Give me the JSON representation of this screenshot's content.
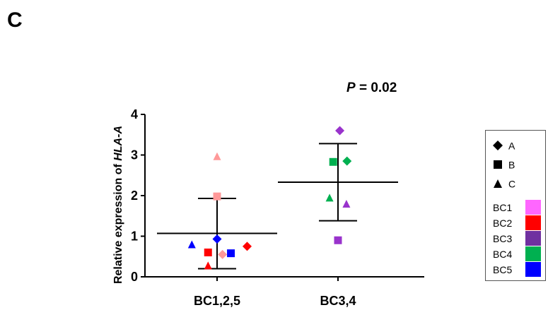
{
  "panel_label": "C",
  "p_value": {
    "prefix": "P",
    "text": " = 0.02"
  },
  "legend": {
    "shapes": [
      {
        "icon": "diamond",
        "label": "A"
      },
      {
        "icon": "square",
        "label": "B"
      },
      {
        "icon": "triangle",
        "label": "C"
      }
    ],
    "groups": [
      {
        "label": "BC1",
        "color": "#ff66ff"
      },
      {
        "label": "BC2",
        "color": "#ff0000"
      },
      {
        "label": "BC3",
        "color": "#7030a0"
      },
      {
        "label": "BC4",
        "color": "#00b050"
      },
      {
        "label": "BC5",
        "color": "#0000ff"
      }
    ]
  },
  "chart_data": {
    "type": "scatter",
    "ylabel_prefix": "Relative expression of ",
    "ylabel_gene": "HLA-A",
    "categories": [
      "BC1,2,5",
      "BC3,4"
    ],
    "ylim": [
      0,
      4
    ],
    "yticks": [
      0,
      1,
      2,
      3,
      4
    ],
    "grid": false,
    "summary": [
      {
        "category": "BC1,2,5",
        "mean": 1.07,
        "upper": 1.93,
        "lower": 0.2
      },
      {
        "category": "BC3,4",
        "mean": 2.33,
        "upper": 3.28,
        "lower": 1.38
      }
    ],
    "points": [
      {
        "category": "BC1,2,5",
        "offset": 0,
        "y": 2.97,
        "shape": "triangle",
        "color": "#ff9999"
      },
      {
        "category": "BC1,2,5",
        "offset": 0,
        "y": 1.98,
        "shape": "square",
        "color": "#ff9999"
      },
      {
        "category": "BC1,2,5",
        "offset": 0,
        "y": 0.93,
        "shape": "diamond",
        "color": "#0000ff"
      },
      {
        "category": "BC1,2,5",
        "offset": -0.42,
        "y": 0.8,
        "shape": "triangle",
        "color": "#0000ff"
      },
      {
        "category": "BC1,2,5",
        "offset": 0.5,
        "y": 0.75,
        "shape": "diamond",
        "color": "#ff0000"
      },
      {
        "category": "BC1,2,5",
        "offset": -0.15,
        "y": 0.6,
        "shape": "square",
        "color": "#ff0000"
      },
      {
        "category": "BC1,2,5",
        "offset": 0.23,
        "y": 0.58,
        "shape": "square",
        "color": "#0000ff"
      },
      {
        "category": "BC1,2,5",
        "offset": 0.09,
        "y": 0.55,
        "shape": "diamond",
        "color": "#ff9999"
      },
      {
        "category": "BC1,2,5",
        "offset": -0.15,
        "y": 0.28,
        "shape": "triangle",
        "color": "#ff0000"
      },
      {
        "category": "BC3,4",
        "offset": 0.03,
        "y": 3.6,
        "shape": "diamond",
        "color": "#9933cc"
      },
      {
        "category": "BC3,4",
        "offset": -0.08,
        "y": 2.83,
        "shape": "square",
        "color": "#00b050"
      },
      {
        "category": "BC3,4",
        "offset": 0.15,
        "y": 2.85,
        "shape": "diamond",
        "color": "#00b050"
      },
      {
        "category": "BC3,4",
        "offset": -0.14,
        "y": 1.95,
        "shape": "triangle",
        "color": "#00b050"
      },
      {
        "category": "BC3,4",
        "offset": 0.14,
        "y": 1.8,
        "shape": "triangle",
        "color": "#9933cc"
      },
      {
        "category": "BC3,4",
        "offset": 0.0,
        "y": 0.9,
        "shape": "square",
        "color": "#9933cc"
      }
    ]
  }
}
